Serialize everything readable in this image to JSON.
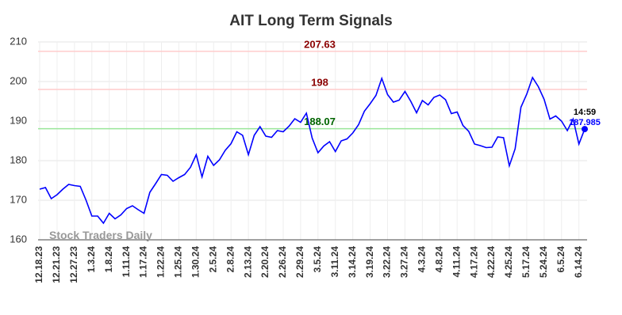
{
  "chart_data": {
    "type": "line",
    "title": "AIT Long Term Signals",
    "categories": [
      "12.18.23",
      null,
      null,
      "12.21.23",
      null,
      null,
      "12.27.23",
      null,
      null,
      "1.3.24",
      null,
      null,
      "1.8.24",
      null,
      null,
      "1.11.24",
      null,
      null,
      "1.17.24",
      null,
      null,
      "1.22.24",
      null,
      null,
      "1.25.24",
      null,
      null,
      "1.30.24",
      null,
      null,
      "2.5.24",
      null,
      null,
      "2.8.24",
      null,
      null,
      "2.13.24",
      null,
      null,
      "2.20.24",
      null,
      null,
      "2.26.24",
      null,
      null,
      "2.29.24",
      null,
      null,
      "3.5.24",
      null,
      null,
      "3.11.24",
      null,
      null,
      "3.14.24",
      null,
      null,
      "3.19.24",
      null,
      null,
      "3.22.24",
      null,
      null,
      "3.27.24",
      null,
      null,
      "4.3.24",
      null,
      null,
      "4.8.24",
      null,
      null,
      "4.11.24",
      null,
      null,
      "4.17.24",
      null,
      null,
      "4.22.24",
      null,
      null,
      "4.25.24",
      null,
      null,
      "5.17.24",
      null,
      null,
      "5.24.24",
      null,
      null,
      "6.5.24",
      null,
      null,
      "6.14.24",
      null
    ],
    "values": [
      172.8,
      173.2,
      170.4,
      171.4,
      172.8,
      174,
      173.7,
      173.5,
      170,
      166,
      166,
      164.2,
      166.7,
      165.3,
      166.3,
      167.9,
      168.6,
      167.6,
      166.7,
      172,
      174.2,
      176.5,
      176.3,
      174.8,
      175.7,
      176.5,
      178.3,
      181.5,
      175.9,
      181.1,
      178.8,
      180.2,
      182.6,
      184.3,
      187.3,
      186.4,
      181.5,
      186.4,
      188.6,
      186.2,
      185.9,
      187.6,
      187.3,
      188.7,
      190.6,
      189.7,
      192,
      185.7,
      182,
      183.7,
      184.8,
      182.3,
      185,
      185.5,
      187,
      189.1,
      192.5,
      194.4,
      196.5,
      200.8,
      196.7,
      194.8,
      195.3,
      197.5,
      195,
      192.1,
      195.2,
      194.1,
      196,
      196.6,
      195.4,
      191.9,
      192.3,
      188.9,
      187.4,
      184.2,
      183.8,
      183.3,
      183.4,
      186,
      185.8,
      178.7,
      183,
      193.5,
      196.8,
      201,
      198.7,
      195.5,
      190.5,
      191.3,
      190,
      187.6,
      190.5,
      184.2,
      187.985
    ],
    "color": "#0000ff",
    "last_time": "14:59",
    "levels": [
      {
        "value": 207.63,
        "color": "#ffcccc",
        "label_color": "#8b0000"
      },
      {
        "value": 198,
        "color": "#ffcccc",
        "label_color": "#8b0000"
      },
      {
        "value": 188.07,
        "color": "#99e699",
        "label_color": "#006400"
      }
    ],
    "watermark": "Stock Traders Daily",
    "ylim": [
      160,
      210
    ],
    "yticks": [
      160,
      170,
      180,
      190,
      200,
      210
    ],
    "grid": true
  }
}
